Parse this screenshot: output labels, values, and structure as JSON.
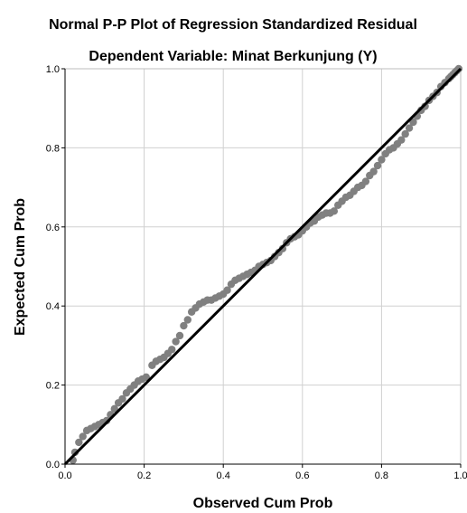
{
  "chart_data": {
    "type": "scatter",
    "title": "Normal P-P Plot of Regression Standardized Residual",
    "subtitle": "Dependent Variable: Minat Berkunjung (Y)",
    "xlabel": "Observed Cum Prob",
    "ylabel": "Expected Cum Prob",
    "xlim": [
      0,
      1
    ],
    "ylim": [
      0,
      1
    ],
    "xticks": [
      0.0,
      0.2,
      0.4,
      0.6,
      0.8,
      1.0
    ],
    "yticks": [
      0.0,
      0.2,
      0.4,
      0.6,
      0.8,
      1.0
    ],
    "xtick_labels": [
      "0.0",
      "0.2",
      "0.4",
      "0.6",
      "0.8",
      "1.0"
    ],
    "ytick_labels": [
      "0.0",
      "0.2",
      "0.4",
      "0.6",
      "0.8",
      "1.0"
    ],
    "grid": true,
    "point_color": "#808080",
    "line_color": "#000000",
    "reference_line": {
      "from": [
        0,
        0
      ],
      "to": [
        1,
        1
      ]
    },
    "points": [
      [
        0.02,
        0.01
      ],
      [
        0.025,
        0.03
      ],
      [
        0.035,
        0.055
      ],
      [
        0.045,
        0.07
      ],
      [
        0.055,
        0.085
      ],
      [
        0.065,
        0.09
      ],
      [
        0.075,
        0.095
      ],
      [
        0.085,
        0.1
      ],
      [
        0.095,
        0.105
      ],
      [
        0.105,
        0.11
      ],
      [
        0.115,
        0.125
      ],
      [
        0.125,
        0.14
      ],
      [
        0.135,
        0.155
      ],
      [
        0.145,
        0.165
      ],
      [
        0.155,
        0.18
      ],
      [
        0.165,
        0.19
      ],
      [
        0.175,
        0.2
      ],
      [
        0.185,
        0.21
      ],
      [
        0.195,
        0.215
      ],
      [
        0.205,
        0.22
      ],
      [
        0.22,
        0.25
      ],
      [
        0.23,
        0.26
      ],
      [
        0.24,
        0.265
      ],
      [
        0.25,
        0.27
      ],
      [
        0.26,
        0.28
      ],
      [
        0.27,
        0.29
      ],
      [
        0.28,
        0.31
      ],
      [
        0.29,
        0.325
      ],
      [
        0.3,
        0.35
      ],
      [
        0.31,
        0.365
      ],
      [
        0.32,
        0.385
      ],
      [
        0.33,
        0.395
      ],
      [
        0.34,
        0.405
      ],
      [
        0.35,
        0.41
      ],
      [
        0.36,
        0.415
      ],
      [
        0.37,
        0.415
      ],
      [
        0.38,
        0.42
      ],
      [
        0.39,
        0.425
      ],
      [
        0.4,
        0.43
      ],
      [
        0.41,
        0.44
      ],
      [
        0.42,
        0.455
      ],
      [
        0.43,
        0.465
      ],
      [
        0.44,
        0.47
      ],
      [
        0.45,
        0.475
      ],
      [
        0.46,
        0.48
      ],
      [
        0.47,
        0.485
      ],
      [
        0.48,
        0.49
      ],
      [
        0.49,
        0.5
      ],
      [
        0.5,
        0.505
      ],
      [
        0.51,
        0.51
      ],
      [
        0.52,
        0.515
      ],
      [
        0.53,
        0.525
      ],
      [
        0.54,
        0.535
      ],
      [
        0.55,
        0.545
      ],
      [
        0.56,
        0.56
      ],
      [
        0.57,
        0.57
      ],
      [
        0.58,
        0.575
      ],
      [
        0.59,
        0.58
      ],
      [
        0.6,
        0.59
      ],
      [
        0.61,
        0.6
      ],
      [
        0.62,
        0.61
      ],
      [
        0.63,
        0.615
      ],
      [
        0.64,
        0.625
      ],
      [
        0.65,
        0.63
      ],
      [
        0.66,
        0.635
      ],
      [
        0.67,
        0.635
      ],
      [
        0.68,
        0.64
      ],
      [
        0.69,
        0.655
      ],
      [
        0.7,
        0.665
      ],
      [
        0.71,
        0.675
      ],
      [
        0.72,
        0.68
      ],
      [
        0.73,
        0.69
      ],
      [
        0.74,
        0.7
      ],
      [
        0.75,
        0.705
      ],
      [
        0.76,
        0.715
      ],
      [
        0.77,
        0.73
      ],
      [
        0.78,
        0.74
      ],
      [
        0.79,
        0.755
      ],
      [
        0.8,
        0.77
      ],
      [
        0.81,
        0.785
      ],
      [
        0.82,
        0.795
      ],
      [
        0.83,
        0.8
      ],
      [
        0.84,
        0.81
      ],
      [
        0.85,
        0.82
      ],
      [
        0.86,
        0.835
      ],
      [
        0.87,
        0.85
      ],
      [
        0.88,
        0.865
      ],
      [
        0.89,
        0.88
      ],
      [
        0.9,
        0.895
      ],
      [
        0.91,
        0.905
      ],
      [
        0.92,
        0.92
      ],
      [
        0.93,
        0.93
      ],
      [
        0.94,
        0.94
      ],
      [
        0.95,
        0.955
      ],
      [
        0.96,
        0.965
      ],
      [
        0.97,
        0.975
      ],
      [
        0.975,
        0.98
      ],
      [
        0.98,
        0.985
      ],
      [
        0.985,
        0.99
      ],
      [
        0.99,
        0.995
      ],
      [
        0.995,
        1.0
      ]
    ]
  }
}
